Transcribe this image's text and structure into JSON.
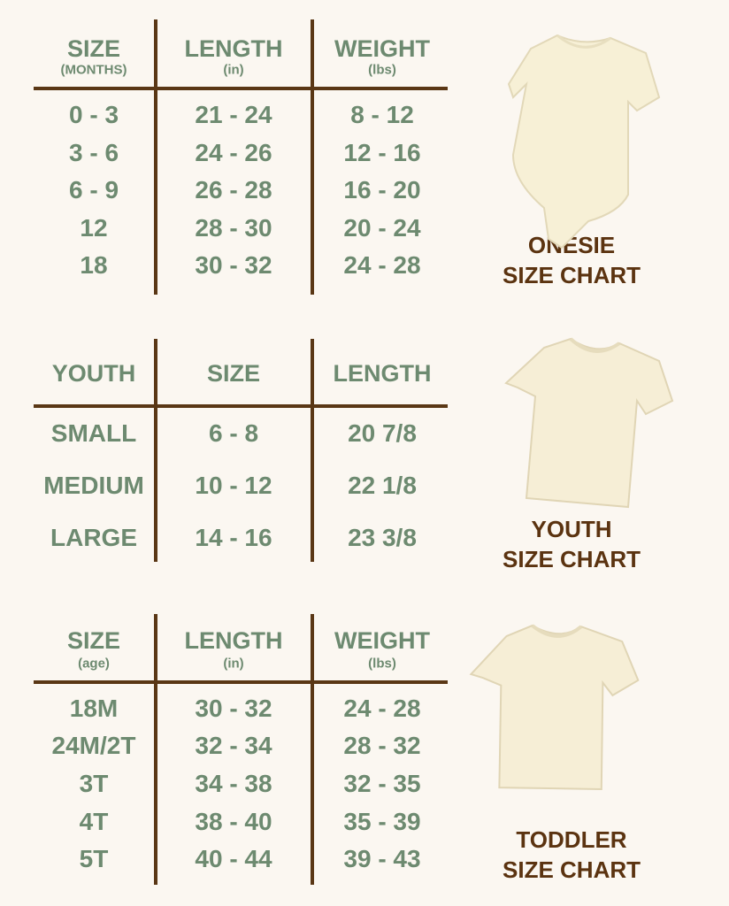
{
  "colors": {
    "background": "#fbf7f1",
    "text_green": "#6d8a70",
    "lines_brown": "#5a3715",
    "caption_brown": "#5b3310",
    "garment_cream": "#f6efd8"
  },
  "sections": [
    {
      "id": "onesie",
      "headers": [
        {
          "label": "SIZE",
          "sub": "(MONTHS)"
        },
        {
          "label": "LENGTH",
          "sub": "(in)"
        },
        {
          "label": "WEIGHT",
          "sub": "(lbs)"
        }
      ],
      "rows": [
        [
          "0 - 3",
          "21 - 24",
          "8 - 12"
        ],
        [
          "3 - 6",
          "24 - 26",
          "12 - 16"
        ],
        [
          "6 - 9",
          "26 - 28",
          "16 - 20"
        ],
        [
          "12",
          "28 - 30",
          "20 - 24"
        ],
        [
          "18",
          "30 - 32",
          "24 - 28"
        ]
      ],
      "caption": [
        "ONESIE",
        "SIZE CHART"
      ],
      "garment_icon": "onesie-image"
    },
    {
      "id": "youth",
      "headers": [
        {
          "label": "YOUTH"
        },
        {
          "label": "SIZE"
        },
        {
          "label": "LENGTH"
        }
      ],
      "rows": [
        [
          "SMALL",
          "6 - 8",
          "20 7/8"
        ],
        [
          "MEDIUM",
          "10 - 12",
          "22 1/8"
        ],
        [
          "LARGE",
          "14 - 16",
          "23 3/8"
        ]
      ],
      "caption": [
        "YOUTH",
        "SIZE CHART"
      ],
      "garment_icon": "tshirt-image"
    },
    {
      "id": "toddler",
      "headers": [
        {
          "label": "SIZE",
          "sub": "(age)"
        },
        {
          "label": "LENGTH",
          "sub": "(in)"
        },
        {
          "label": "WEIGHT",
          "sub": "(lbs)"
        }
      ],
      "rows": [
        [
          "18M",
          "30 - 32",
          "24 - 28"
        ],
        [
          "24M/2T",
          "32 - 34",
          "28 - 32"
        ],
        [
          "3T",
          "34 - 38",
          "32 - 35"
        ],
        [
          "4T",
          "38 - 40",
          "35 - 39"
        ],
        [
          "5T",
          "40 - 44",
          "39 - 43"
        ]
      ],
      "caption": [
        "TODDLER",
        "SIZE CHART"
      ],
      "garment_icon": "tshirt-image"
    }
  ]
}
